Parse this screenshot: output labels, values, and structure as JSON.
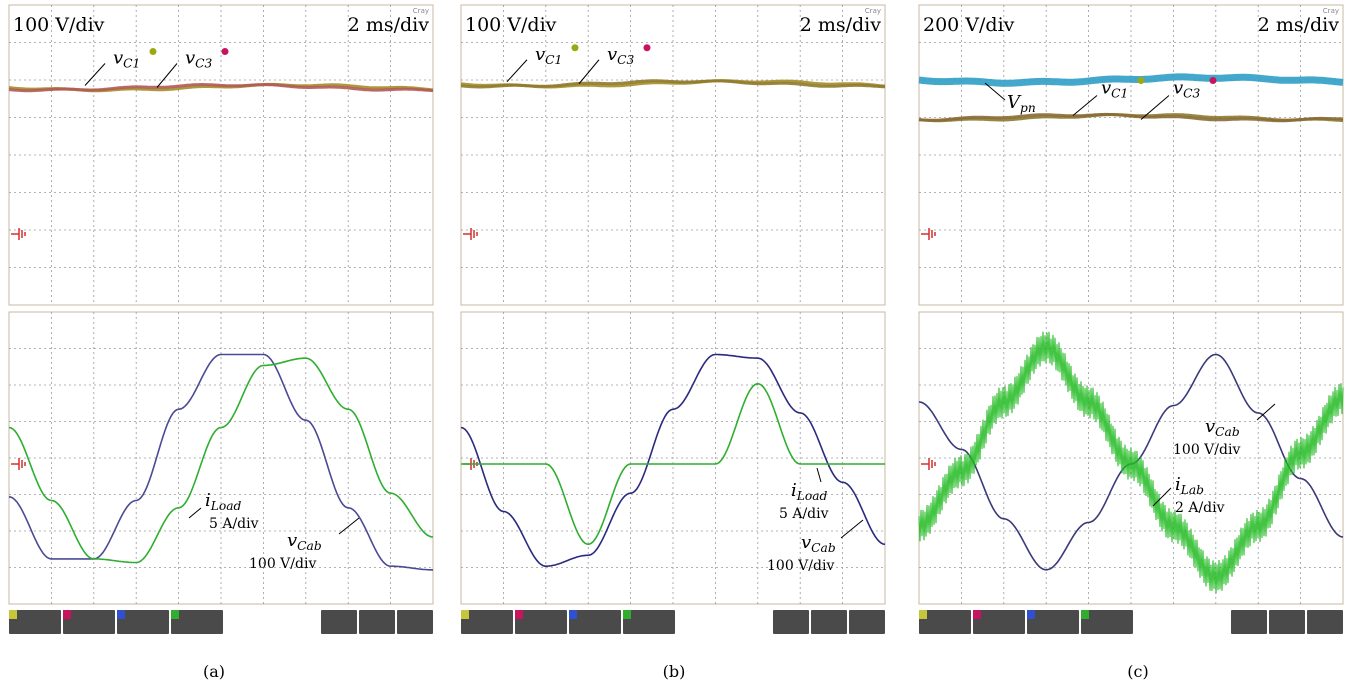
{
  "panels": [
    {
      "caption": "(a)",
      "top_label_left": "100 V/div",
      "top_label_right": "2 ms/div",
      "brand": "Cray",
      "top_traces": [
        {
          "name": "vC1",
          "label": "v",
          "sub": "C1",
          "dot_color": "#9aa813",
          "color": "#a48d28",
          "level_div": 1.8
        },
        {
          "name": "vC3",
          "label": "v",
          "sub": "C3",
          "dot_color": "#c8135f",
          "color": "#b25a55",
          "level_div": 1.8
        }
      ],
      "bottom_traces": [
        {
          "name": "vCab",
          "label": "v",
          "sub": "Cab",
          "scale": "100 V/div",
          "color": "#4a4a95"
        },
        {
          "name": "iLoad",
          "label": "i",
          "sub": "Load",
          "scale": "5 A/div",
          "color": "#2fae2f"
        }
      ]
    },
    {
      "caption": "(b)",
      "top_label_left": "100 V/div",
      "top_label_right": "2 ms/div",
      "brand": "Cray",
      "top_traces": [
        {
          "name": "vC1",
          "label": "v",
          "sub": "C1",
          "dot_color": "#9aa813",
          "color": "#a48d28",
          "level_div": 1.9
        },
        {
          "name": "vC3",
          "label": "v",
          "sub": "C3",
          "dot_color": "#c8135f",
          "color": "#8f7a2d",
          "level_div": 1.9
        }
      ],
      "bottom_traces": [
        {
          "name": "vCab",
          "label": "v",
          "sub": "Cab",
          "scale": "100 V/div",
          "color": "#2a2a80"
        },
        {
          "name": "iLoad",
          "label": "i",
          "sub": "Load",
          "scale": "5 A/div",
          "color": "#2fae2f"
        }
      ]
    },
    {
      "caption": "(c)",
      "top_label_left": "200 V/div",
      "top_label_right": "2 ms/div",
      "brand": "Cray",
      "top_traces": [
        {
          "name": "Vpn",
          "label": "V",
          "sub": "pn",
          "color": "#2f9fc6",
          "level_div": 2.0
        },
        {
          "name": "vC1",
          "label": "v",
          "sub": "C1",
          "dot_color": "#9aa813",
          "color": "#8a7a30",
          "level_div": 1.0
        },
        {
          "name": "vC3",
          "label": "v",
          "sub": "C3",
          "dot_color": "#c8135f",
          "color": "#8a6a35",
          "level_div": 1.0
        }
      ],
      "bottom_traces": [
        {
          "name": "vCab",
          "label": "v",
          "sub": "Cab",
          "scale": "100 V/div",
          "color": "#3a3a7a"
        },
        {
          "name": "iLab",
          "label": "i",
          "sub": "Lab",
          "scale": "2 A/div",
          "color": "#22bb22"
        }
      ]
    }
  ],
  "colors": {
    "screen_bg": "#ffffff",
    "grid": "#9a9a9a",
    "ground_marker": "#d43030",
    "status_bar": "#4a4a4a"
  },
  "chart_data": [
    {
      "type": "line",
      "title": "(a)",
      "top": {
        "vdiv": "100 V/div",
        "tdiv": "2 ms/div"
      },
      "series": [
        {
          "name": "vCab",
          "scale": "100 V/div",
          "x": [
            0,
            1,
            2,
            3,
            4,
            5,
            6,
            7,
            8,
            9,
            10
          ],
          "values": [
            -0.9,
            -2.6,
            -2.6,
            -1.0,
            1.5,
            3.0,
            3.0,
            1.2,
            -1.2,
            -2.8,
            -2.9
          ]
        },
        {
          "name": "iLoad",
          "scale": "5 A/div",
          "x": [
            0,
            1,
            2,
            3,
            4,
            5,
            6,
            7,
            8,
            9,
            10
          ],
          "values": [
            1.0,
            -1.0,
            -2.6,
            -2.7,
            -1.2,
            1.0,
            2.7,
            2.9,
            1.5,
            -0.8,
            -2.0
          ]
        }
      ]
    },
    {
      "type": "line",
      "title": "(b)",
      "top": {
        "vdiv": "100 V/div",
        "tdiv": "2 ms/div"
      },
      "series": [
        {
          "name": "vCab",
          "scale": "100 V/div",
          "x": [
            0,
            1,
            2,
            3,
            4,
            5,
            6,
            7,
            8,
            9,
            10
          ],
          "values": [
            1.0,
            -1.3,
            -2.8,
            -2.5,
            -0.8,
            1.5,
            3.0,
            2.9,
            1.4,
            -0.5,
            -2.2
          ]
        },
        {
          "name": "iLoad",
          "scale": "5 A/div",
          "x": [
            0,
            1,
            2,
            3,
            4,
            5,
            6,
            7,
            8,
            9,
            10
          ],
          "values": [
            0,
            0,
            0,
            -2.2,
            0,
            0,
            0,
            2.2,
            0,
            0,
            0
          ]
        }
      ]
    },
    {
      "type": "line",
      "title": "(c)",
      "top": {
        "vdiv": "200 V/div",
        "tdiv": "2 ms/div"
      },
      "series": [
        {
          "name": "vCab",
          "scale": "100 V/div",
          "x": [
            0,
            1,
            2,
            3,
            4,
            5,
            6,
            7,
            8,
            9,
            10
          ],
          "values": [
            1.7,
            0.4,
            -1.5,
            -2.9,
            -1.6,
            0,
            1.6,
            3.0,
            1.4,
            -0.4,
            -2.0
          ]
        },
        {
          "name": "iLab",
          "scale": "2 A/div",
          "x": [
            0,
            1,
            2,
            3,
            4,
            5,
            6,
            7,
            8,
            9,
            10
          ],
          "values": [
            -1.7,
            -0.2,
            1.7,
            3.2,
            1.7,
            0,
            -1.7,
            -3.1,
            -1.7,
            0.3,
            1.8
          ]
        }
      ]
    }
  ]
}
